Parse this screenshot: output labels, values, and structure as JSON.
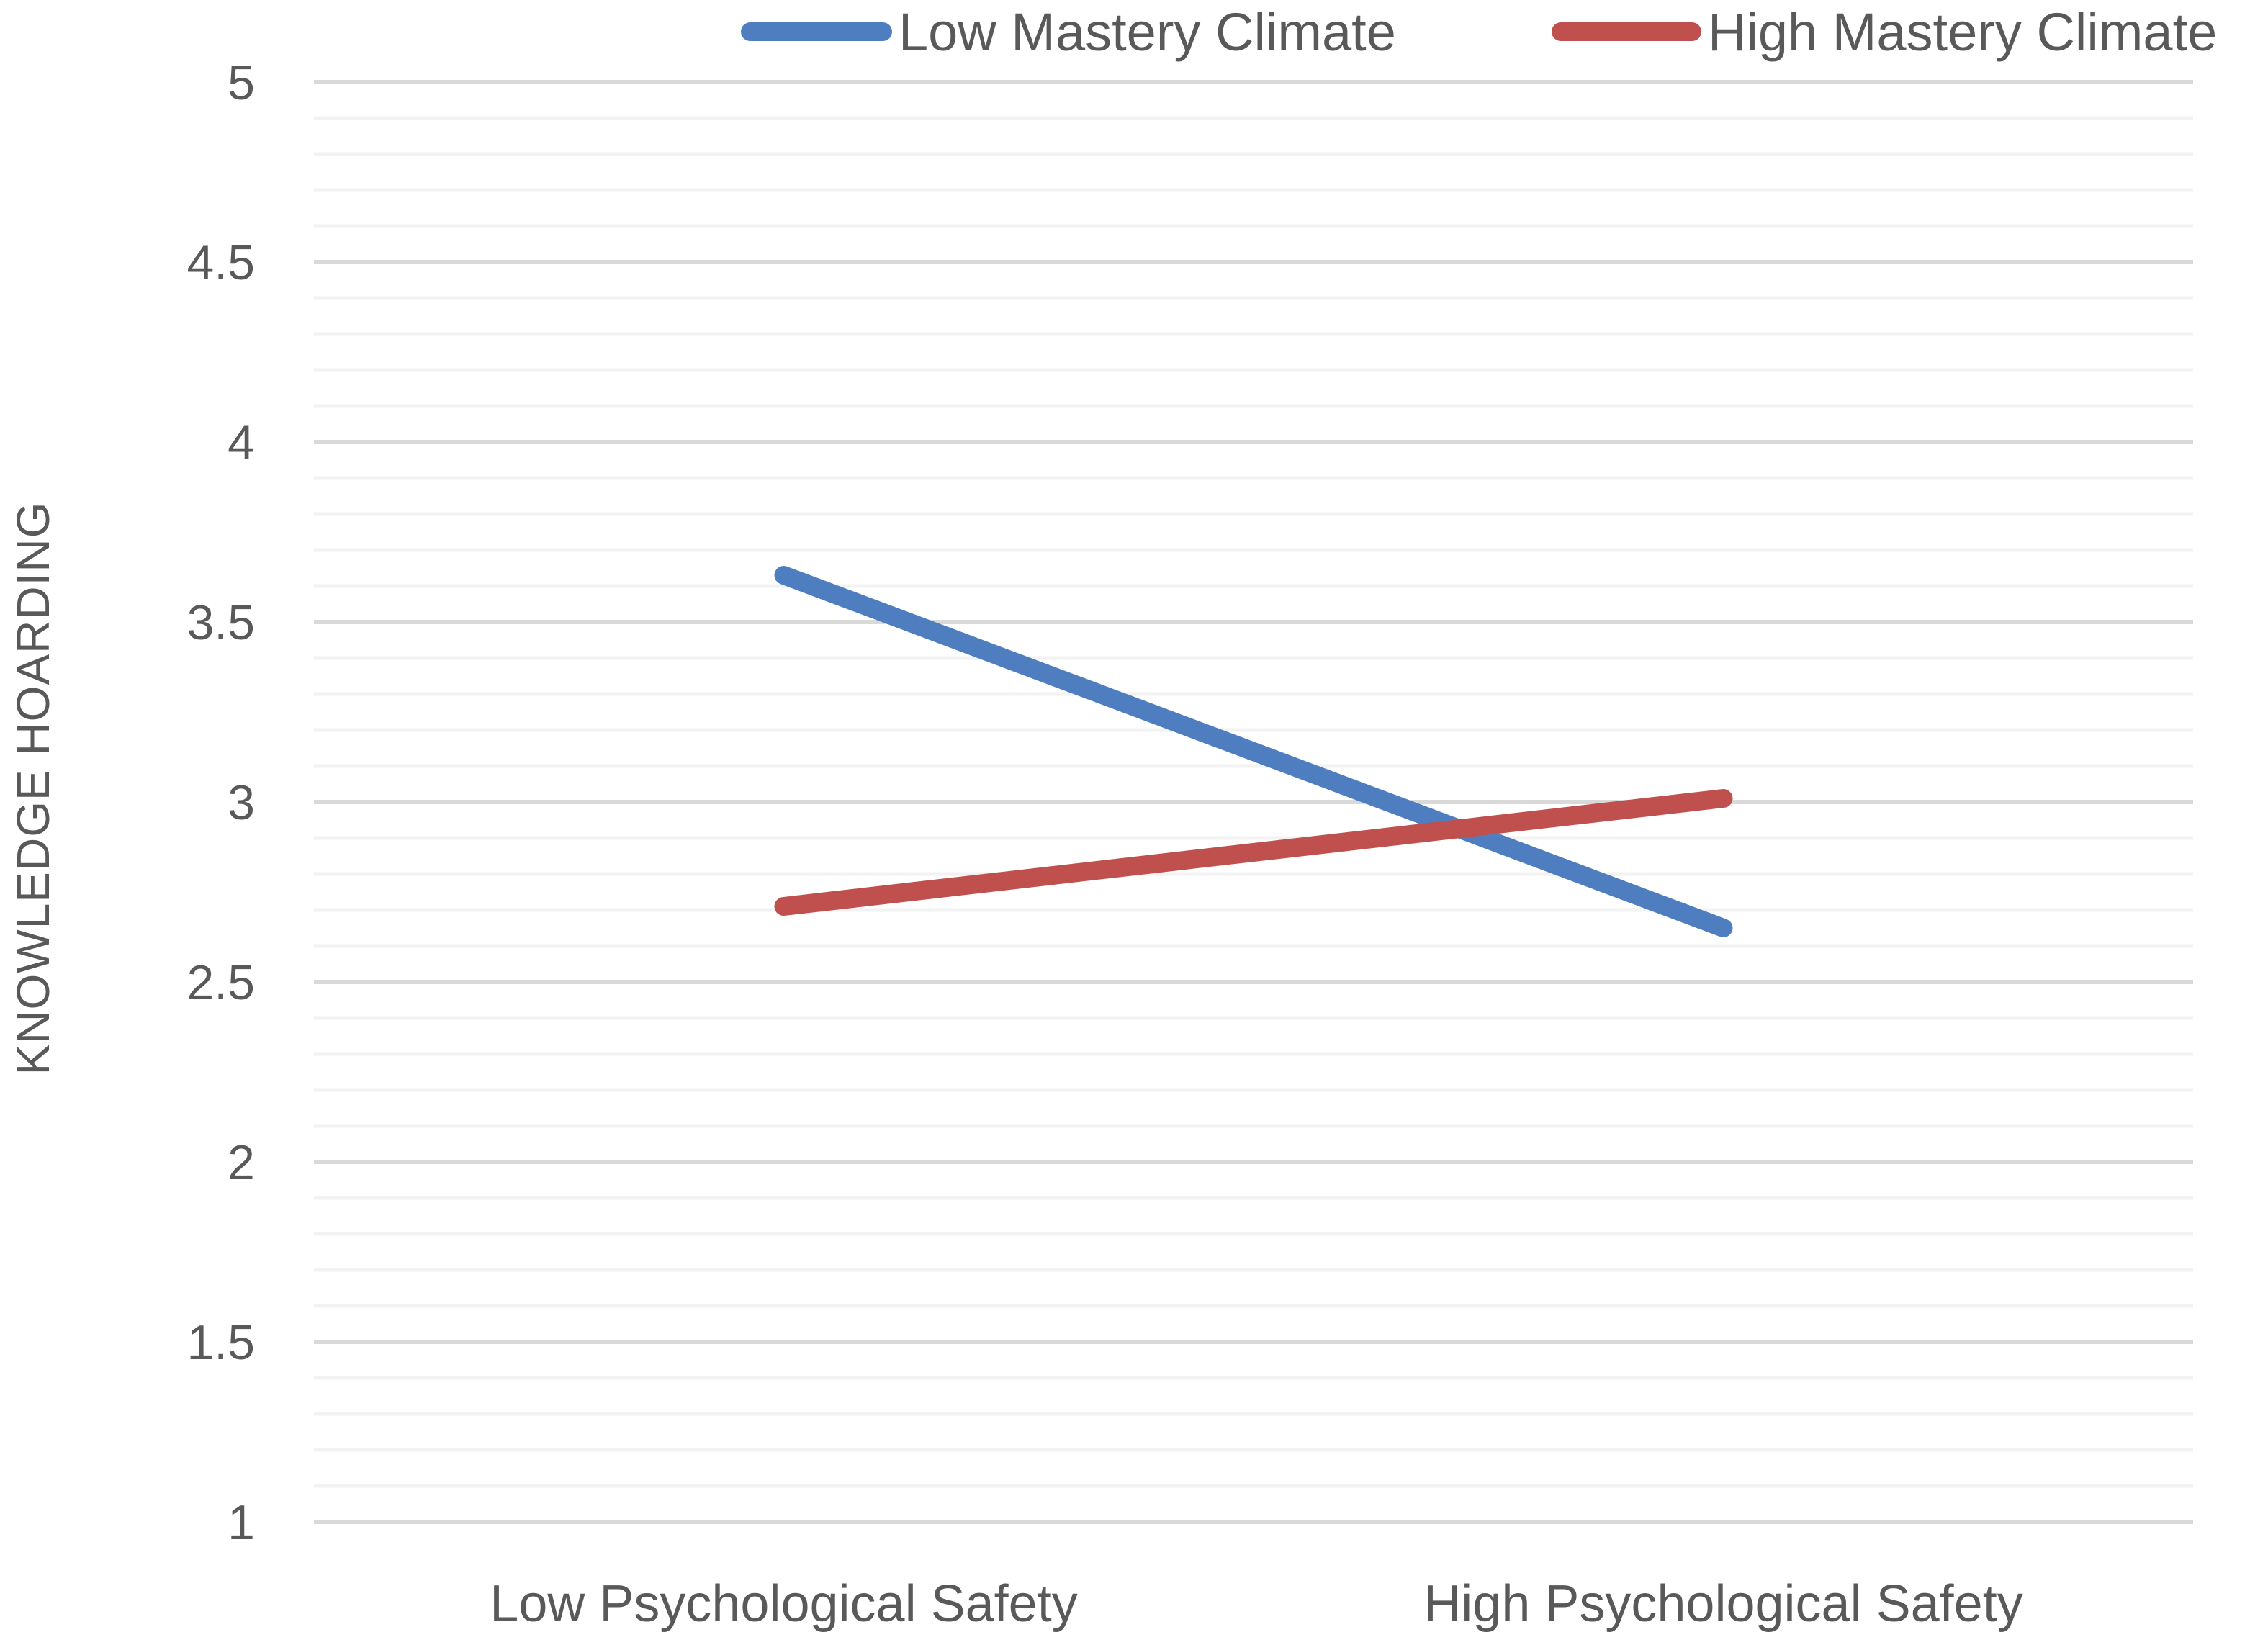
{
  "chart_data": {
    "type": "line",
    "title": "",
    "xlabel": "",
    "ylabel": "KNOWLEDGE HOARDING",
    "categories": [
      "Low Psychological Safety",
      "High Psychological Safety"
    ],
    "ylim": [
      1,
      5
    ],
    "yticks": [
      "1",
      "1.5",
      "2",
      "2.5",
      "3",
      "3.5",
      "4",
      "4.5",
      "5"
    ],
    "grid": true,
    "legend_position": "top",
    "series": [
      {
        "name": "Low Mastery Climate",
        "values": [
          3.63,
          2.65
        ],
        "color": "#4E7EC0"
      },
      {
        "name": "High Mastery Climate",
        "values": [
          2.71,
          3.01
        ],
        "color": "#C0504D"
      }
    ]
  }
}
